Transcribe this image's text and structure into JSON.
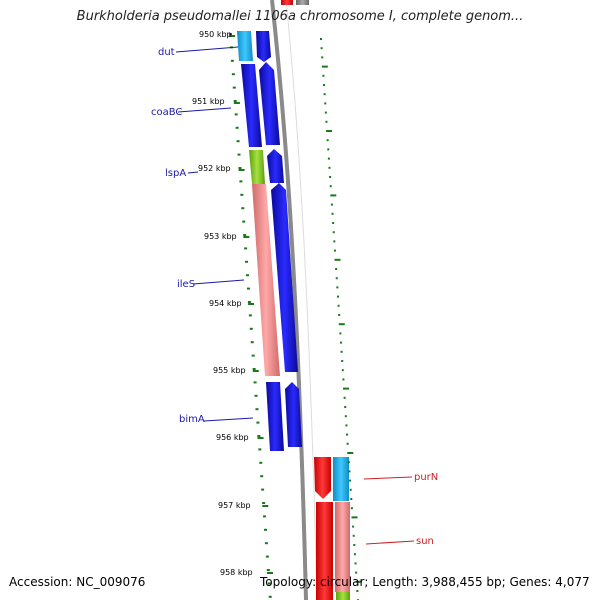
{
  "title": "Burkholderia pseudomallei 1106a chromosome I, complete genom...",
  "footer": {
    "accession": "Accession: NC_009076",
    "summary": "Topology: circular; Length: 3,988,455 bp; Genes: 4,077"
  },
  "ticks": [
    {
      "label": "950 kbp",
      "kbp": 950
    },
    {
      "label": "951 kbp",
      "kbp": 951
    },
    {
      "label": "952 kbp",
      "kbp": 952
    },
    {
      "label": "953 kbp",
      "kbp": 953
    },
    {
      "label": "954 kbp",
      "kbp": 954
    },
    {
      "label": "955 kbp",
      "kbp": 955
    },
    {
      "label": "956 kbp",
      "kbp": 956
    },
    {
      "label": "957 kbp",
      "kbp": 957
    },
    {
      "label": "958 kbp",
      "kbp": 958
    }
  ],
  "gene_labels": [
    {
      "label": "dut",
      "color": "#1a1aa8",
      "side": "left"
    },
    {
      "label": "coaBC",
      "color": "#1a1aa8",
      "side": "left"
    },
    {
      "label": "lspA",
      "color": "#1a1aa8",
      "side": "left"
    },
    {
      "label": "ileS",
      "color": "#1a1aa8",
      "side": "left"
    },
    {
      "label": "bimA",
      "color": "#1a1aa8",
      "side": "left"
    },
    {
      "label": "purN",
      "color": "#cc2222",
      "side": "right"
    },
    {
      "label": "sun",
      "color": "#cc2222",
      "side": "right"
    }
  ],
  "colors": {
    "cds_blue": "#1010e8",
    "cds_cyan": "#19b4f0",
    "cds_green": "#7cc81e",
    "cds_pink": "#f08c8c",
    "cds_red": "#ff1a1a",
    "backbone": "#888888",
    "tick_green": "#1a7a1a"
  }
}
